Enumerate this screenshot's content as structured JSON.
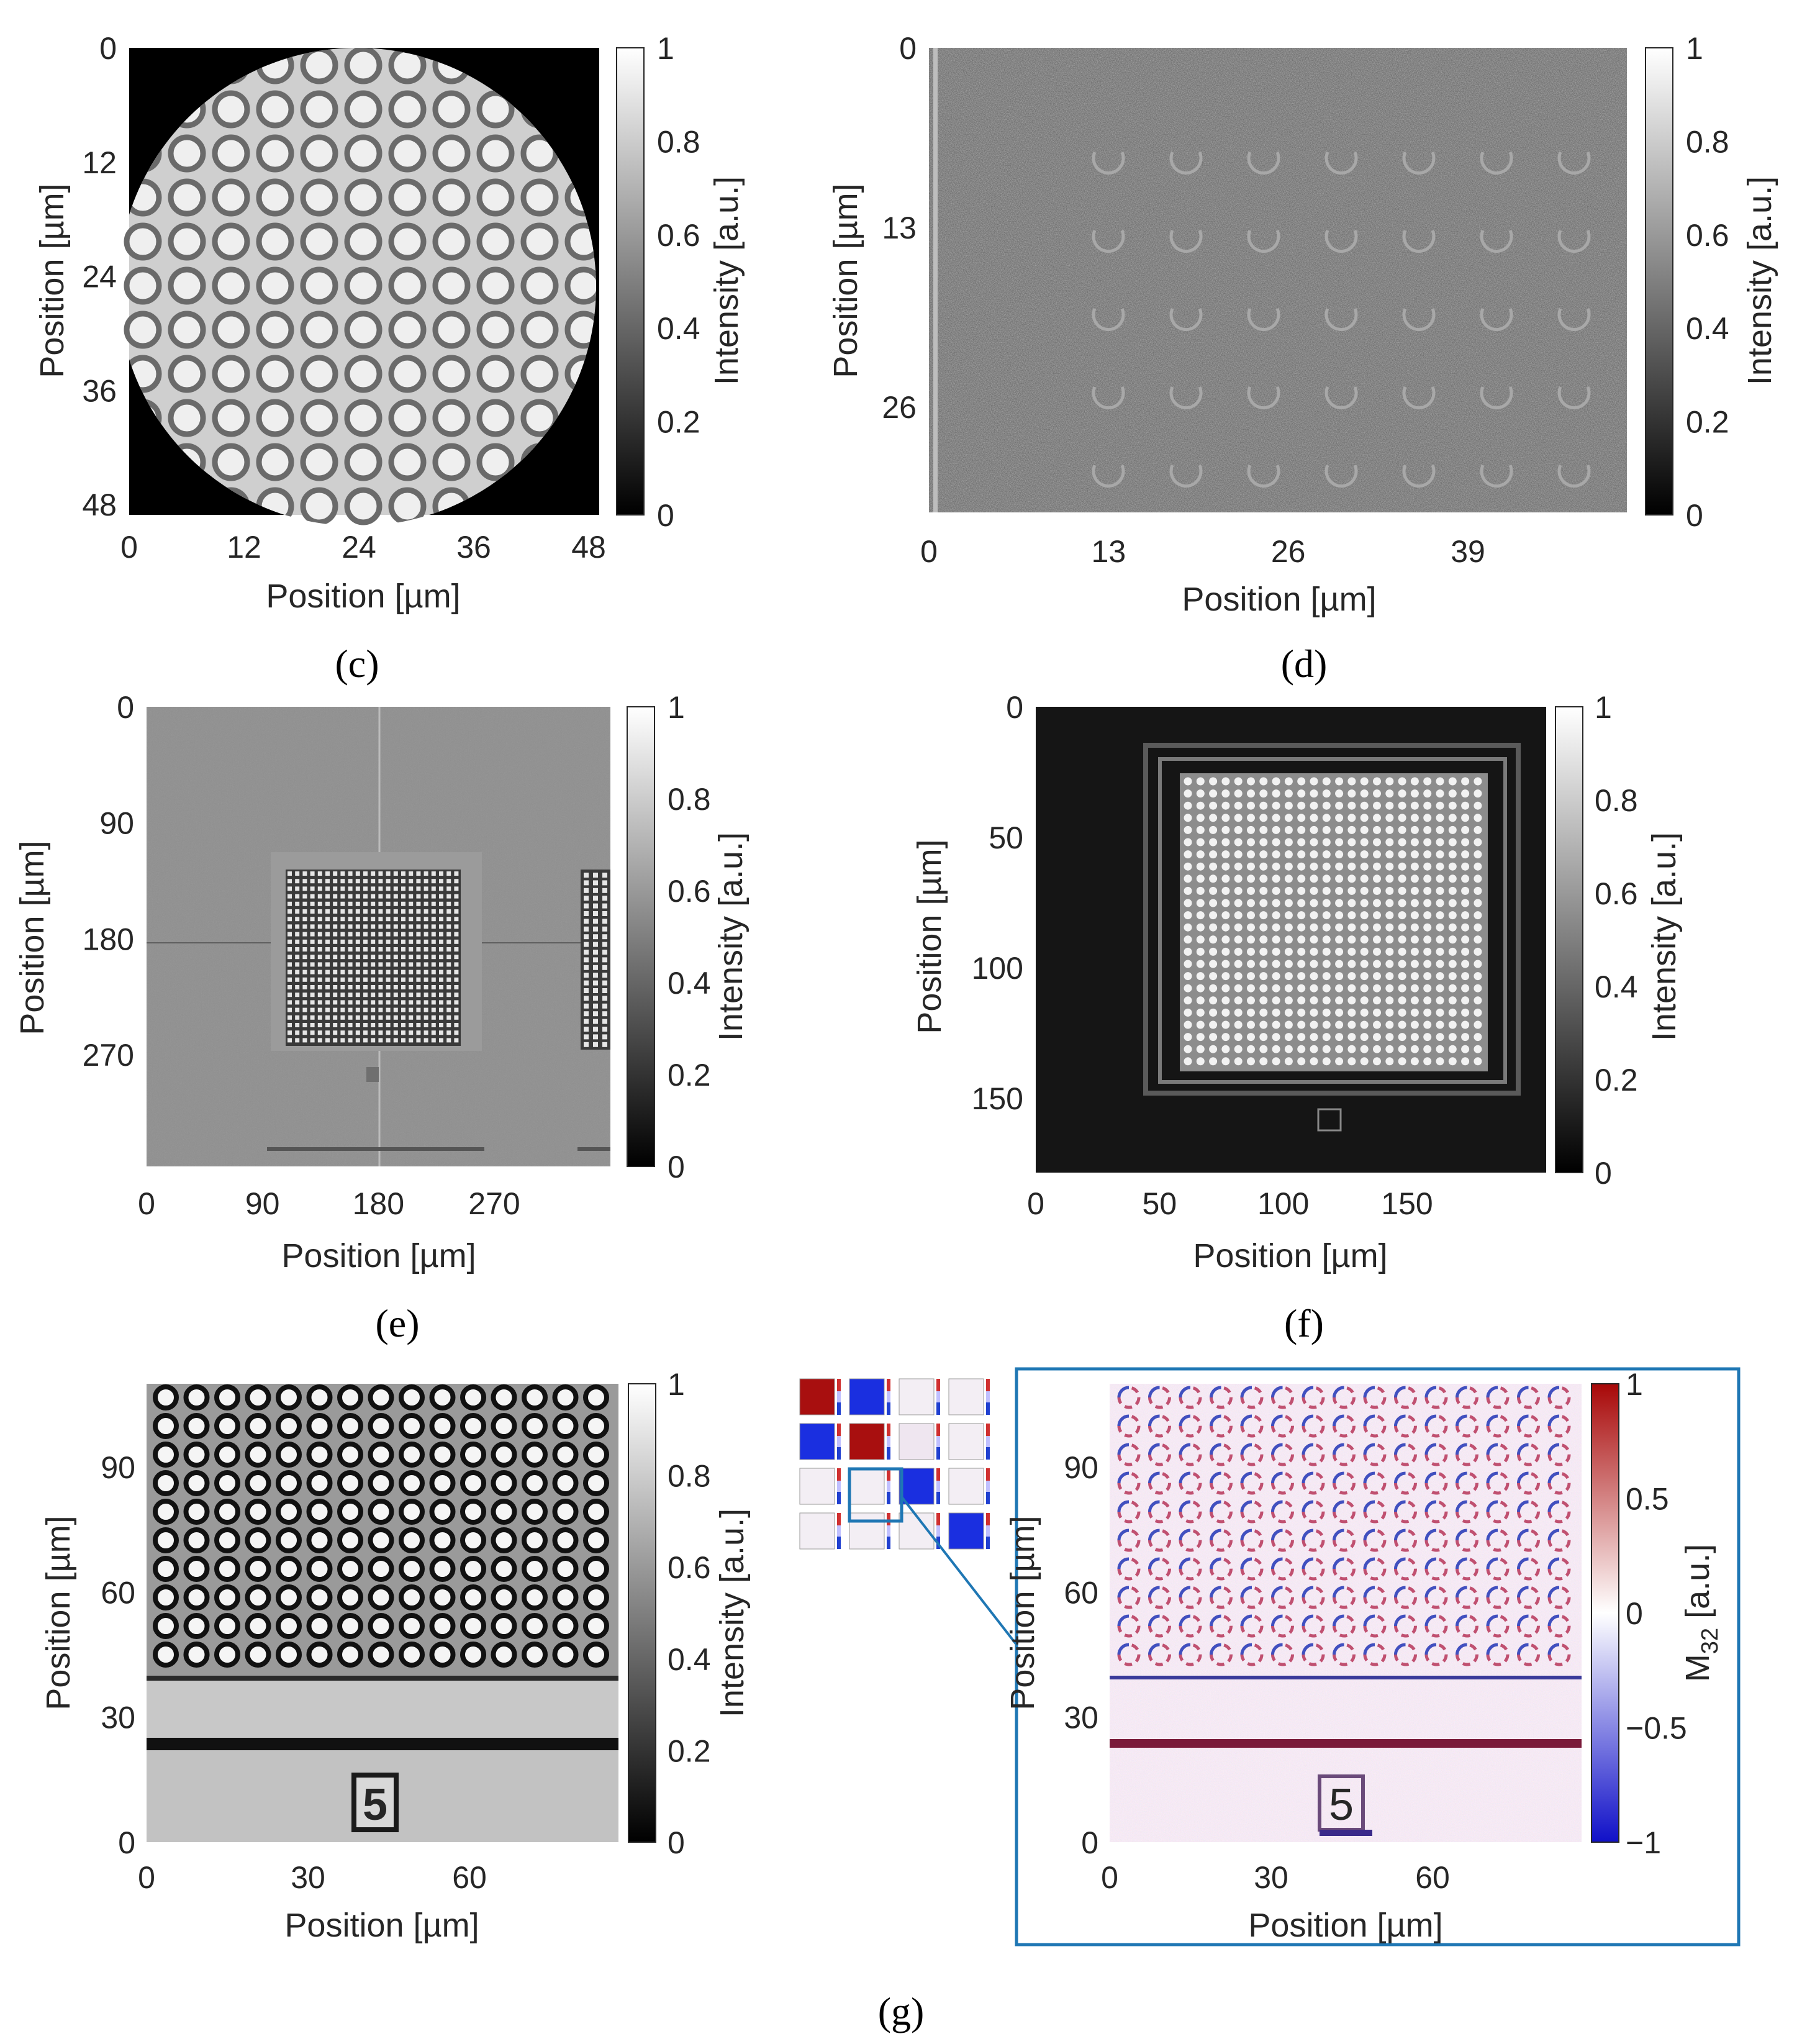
{
  "colors": {
    "border": "#1f77b4",
    "ink": "#262626"
  },
  "common": {
    "position_label": "Position [µm]",
    "intensity_label": "Intensity [a.u.]",
    "gray_ticks": [
      "1",
      "0.8",
      "0.6",
      "0.4",
      "0.2",
      "0"
    ]
  },
  "panels": {
    "c": {
      "caption": "(c)",
      "y_ticks": [
        "0",
        "12",
        "24",
        "36",
        "48"
      ],
      "x_ticks": [
        "0",
        "12",
        "24",
        "36",
        "48"
      ]
    },
    "d": {
      "caption": "(d)",
      "y_ticks": [
        "0",
        "13",
        "26"
      ],
      "x_ticks": [
        "0",
        "13",
        "26",
        "39"
      ]
    },
    "e": {
      "caption": "(e)",
      "y_ticks": [
        "0",
        "90",
        "180",
        "270"
      ],
      "x_ticks": [
        "0",
        "90",
        "180",
        "270"
      ]
    },
    "f": {
      "caption": "(f)",
      "y_ticks": [
        "0",
        "50",
        "100",
        "150"
      ],
      "x_ticks": [
        "0",
        "50",
        "100",
        "150"
      ]
    },
    "g_left": {
      "y_ticks": [
        "90",
        "60",
        "30",
        "0"
      ],
      "x_ticks": [
        "0",
        "30",
        "60"
      ]
    },
    "g_right": {
      "caption": "(g)",
      "y_ticks": [
        "90",
        "60",
        "30",
        "0"
      ],
      "x_ticks": [
        "0",
        "30",
        "60"
      ],
      "colorbar_ticks": [
        "1",
        "0.5",
        "0",
        "−0.5",
        "−1"
      ],
      "colorbar_label": "M",
      "colorbar_label_sub": "32",
      "colorbar_label_unit": " [a.u.]",
      "footer_label": "5"
    }
  }
}
